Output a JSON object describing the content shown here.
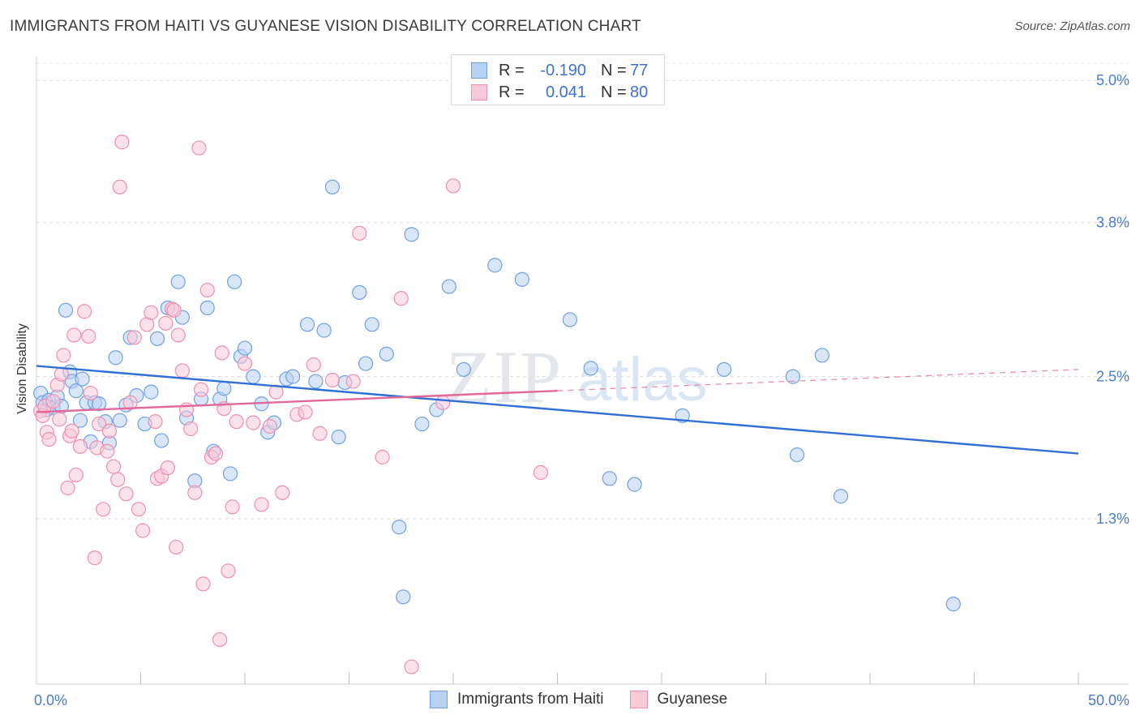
{
  "title": "IMMIGRANTS FROM HAITI VS GUYANESE VISION DISABILITY CORRELATION CHART",
  "source": "Source: ZipAtlas.com",
  "watermark": {
    "zip": "ZIP",
    "atlas": "atlas"
  },
  "legend": {
    "rows": [
      {
        "r_label": "R =",
        "r_value": "-0.190",
        "n_label": "N =",
        "n_value": "77",
        "color": "#6fa0e6",
        "fill": "#b9d1f3"
      },
      {
        "r_label": "R =",
        "r_value": "0.041",
        "n_label": "N =",
        "n_value": "80",
        "color": "#ef8fae",
        "fill": "#f8c9d7"
      }
    ]
  },
  "bottom_legend": [
    {
      "label": "Immigrants from Haiti",
      "color": "#6fa0e6",
      "fill": "#b9d1f3"
    },
    {
      "label": "Guyanese",
      "color": "#ef8fae",
      "fill": "#f8c9d7"
    }
  ],
  "chart_data": {
    "type": "scatter",
    "title": "IMMIGRANTS FROM HAITI VS GUYANESE VISION DISABILITY CORRELATION CHART",
    "xlabel": "",
    "ylabel": "Vision Disability",
    "xlim": [
      0,
      50
    ],
    "ylim": [
      0,
      5.2
    ],
    "x_tick_labels": [
      {
        "value": 0,
        "label": "0.0%"
      },
      {
        "value": 50,
        "label": "50.0%"
      }
    ],
    "y_ticks": [
      {
        "value": 1.3,
        "label": "1.3%"
      },
      {
        "value": 2.5,
        "label": "2.5%"
      },
      {
        "value": 3.8,
        "label": "3.8%"
      },
      {
        "value": 5.0,
        "label": "5.0%"
      }
    ],
    "x_minor_ticks": [
      5,
      10,
      15,
      20,
      25,
      30,
      35,
      40,
      45,
      50
    ],
    "series": [
      {
        "name": "Immigrants from Haiti",
        "color": "#6fa0e6",
        "fill": "#b9d1f3",
        "points": [
          [
            0.2,
            2.36
          ],
          [
            0.3,
            2.28
          ],
          [
            0.5,
            2.22
          ],
          [
            0.6,
            2.3
          ],
          [
            0.8,
            2.24
          ],
          [
            1.0,
            2.33
          ],
          [
            1.2,
            2.25
          ],
          [
            1.4,
            3.06
          ],
          [
            1.6,
            2.54
          ],
          [
            1.7,
            2.46
          ],
          [
            1.9,
            2.38
          ],
          [
            2.1,
            2.13
          ],
          [
            2.2,
            2.48
          ],
          [
            2.4,
            2.28
          ],
          [
            2.6,
            1.95
          ],
          [
            2.8,
            2.28
          ],
          [
            3.0,
            2.27
          ],
          [
            3.3,
            2.12
          ],
          [
            3.5,
            1.94
          ],
          [
            3.8,
            2.66
          ],
          [
            4.0,
            2.13
          ],
          [
            4.3,
            2.26
          ],
          [
            4.5,
            2.83
          ],
          [
            4.8,
            2.34
          ],
          [
            5.2,
            2.1
          ],
          [
            5.5,
            2.37
          ],
          [
            5.8,
            2.82
          ],
          [
            6.0,
            1.96
          ],
          [
            6.3,
            3.08
          ],
          [
            6.8,
            3.3
          ],
          [
            7.0,
            3.0
          ],
          [
            7.2,
            2.15
          ],
          [
            7.6,
            1.62
          ],
          [
            7.9,
            2.31
          ],
          [
            8.2,
            3.08
          ],
          [
            8.5,
            1.87
          ],
          [
            8.8,
            2.31
          ],
          [
            9.0,
            2.4
          ],
          [
            9.3,
            1.68
          ],
          [
            9.5,
            3.3
          ],
          [
            9.8,
            2.67
          ],
          [
            10.0,
            2.74
          ],
          [
            10.4,
            2.5
          ],
          [
            10.8,
            2.27
          ],
          [
            11.1,
            2.03
          ],
          [
            11.4,
            2.11
          ],
          [
            12.0,
            2.48
          ],
          [
            12.3,
            2.5
          ],
          [
            13.0,
            2.94
          ],
          [
            13.4,
            2.46
          ],
          [
            13.8,
            2.89
          ],
          [
            14.2,
            4.1
          ],
          [
            14.5,
            1.99
          ],
          [
            14.8,
            2.45
          ],
          [
            15.5,
            3.21
          ],
          [
            15.8,
            2.61
          ],
          [
            16.1,
            2.94
          ],
          [
            16.8,
            2.69
          ],
          [
            17.4,
            1.23
          ],
          [
            17.6,
            0.64
          ],
          [
            18.0,
            3.7
          ],
          [
            18.5,
            2.1
          ],
          [
            19.2,
            2.22
          ],
          [
            19.8,
            3.26
          ],
          [
            20.5,
            2.56
          ],
          [
            22.0,
            3.44
          ],
          [
            23.3,
            3.32
          ],
          [
            25.6,
            2.98
          ],
          [
            26.6,
            2.57
          ],
          [
            27.5,
            1.64
          ],
          [
            28.7,
            1.59
          ],
          [
            31.0,
            2.17
          ],
          [
            33.0,
            2.56
          ],
          [
            36.3,
            2.5
          ],
          [
            36.5,
            1.84
          ],
          [
            37.7,
            2.68
          ],
          [
            38.6,
            1.49
          ],
          [
            44.0,
            0.58
          ]
        ]
      },
      {
        "name": "Guyanese",
        "color": "#ef8fae",
        "fill": "#f8c9d7",
        "points": [
          [
            0.2,
            2.21
          ],
          [
            0.3,
            2.17
          ],
          [
            0.4,
            2.25
          ],
          [
            0.5,
            2.03
          ],
          [
            0.6,
            1.97
          ],
          [
            0.8,
            2.29
          ],
          [
            1.0,
            2.43
          ],
          [
            1.1,
            2.14
          ],
          [
            1.2,
            2.52
          ],
          [
            1.3,
            2.68
          ],
          [
            1.5,
            1.56
          ],
          [
            1.6,
            2.0
          ],
          [
            1.7,
            2.04
          ],
          [
            1.8,
            2.85
          ],
          [
            1.9,
            1.67
          ],
          [
            2.1,
            1.91
          ],
          [
            2.3,
            3.05
          ],
          [
            2.5,
            2.84
          ],
          [
            2.6,
            2.36
          ],
          [
            2.8,
            0.97
          ],
          [
            2.9,
            1.9
          ],
          [
            3.0,
            2.1
          ],
          [
            3.2,
            1.38
          ],
          [
            3.4,
            1.87
          ],
          [
            3.5,
            2.04
          ],
          [
            3.7,
            1.74
          ],
          [
            3.9,
            1.63
          ],
          [
            4.0,
            4.1
          ],
          [
            4.1,
            4.48
          ],
          [
            4.3,
            1.51
          ],
          [
            4.5,
            2.28
          ],
          [
            4.7,
            2.83
          ],
          [
            4.9,
            1.38
          ],
          [
            5.1,
            1.2
          ],
          [
            5.3,
            2.94
          ],
          [
            5.5,
            3.04
          ],
          [
            5.7,
            2.12
          ],
          [
            5.8,
            1.64
          ],
          [
            6.0,
            1.66
          ],
          [
            6.2,
            2.95
          ],
          [
            6.3,
            1.73
          ],
          [
            6.5,
            3.07
          ],
          [
            6.6,
            3.06
          ],
          [
            6.7,
            1.06
          ],
          [
            6.8,
            2.85
          ],
          [
            7.0,
            2.55
          ],
          [
            7.2,
            2.22
          ],
          [
            7.4,
            2.06
          ],
          [
            7.6,
            1.52
          ],
          [
            7.8,
            4.43
          ],
          [
            7.9,
            2.39
          ],
          [
            8.0,
            0.75
          ],
          [
            8.2,
            3.23
          ],
          [
            8.4,
            1.82
          ],
          [
            8.6,
            1.85
          ],
          [
            8.8,
            0.28
          ],
          [
            8.9,
            2.7
          ],
          [
            9.0,
            2.23
          ],
          [
            9.2,
            0.86
          ],
          [
            9.4,
            1.4
          ],
          [
            9.6,
            2.12
          ],
          [
            10.0,
            2.61
          ],
          [
            10.4,
            2.11
          ],
          [
            10.8,
            1.42
          ],
          [
            11.2,
            2.08
          ],
          [
            11.5,
            2.37
          ],
          [
            11.8,
            1.52
          ],
          [
            12.5,
            2.18
          ],
          [
            12.9,
            2.2
          ],
          [
            13.3,
            2.6
          ],
          [
            13.6,
            2.02
          ],
          [
            14.2,
            2.47
          ],
          [
            15.2,
            2.46
          ],
          [
            15.5,
            3.71
          ],
          [
            16.6,
            1.82
          ],
          [
            17.5,
            3.16
          ],
          [
            18.0,
            0.05
          ],
          [
            19.5,
            2.28
          ],
          [
            20.0,
            4.11
          ],
          [
            24.2,
            1.69
          ]
        ]
      }
    ],
    "trendlines": [
      {
        "series": "Immigrants from Haiti",
        "x": [
          0,
          50
        ],
        "y": [
          2.59,
          1.85
        ],
        "style": "solid"
      },
      {
        "series": "Guyanese",
        "x": [
          0,
          25
        ],
        "y": [
          2.2,
          2.38
        ],
        "style": "solid"
      },
      {
        "series": "Guyanese",
        "x": [
          25,
          50
        ],
        "y": [
          2.38,
          2.56
        ],
        "style": "dashed"
      }
    ]
  }
}
